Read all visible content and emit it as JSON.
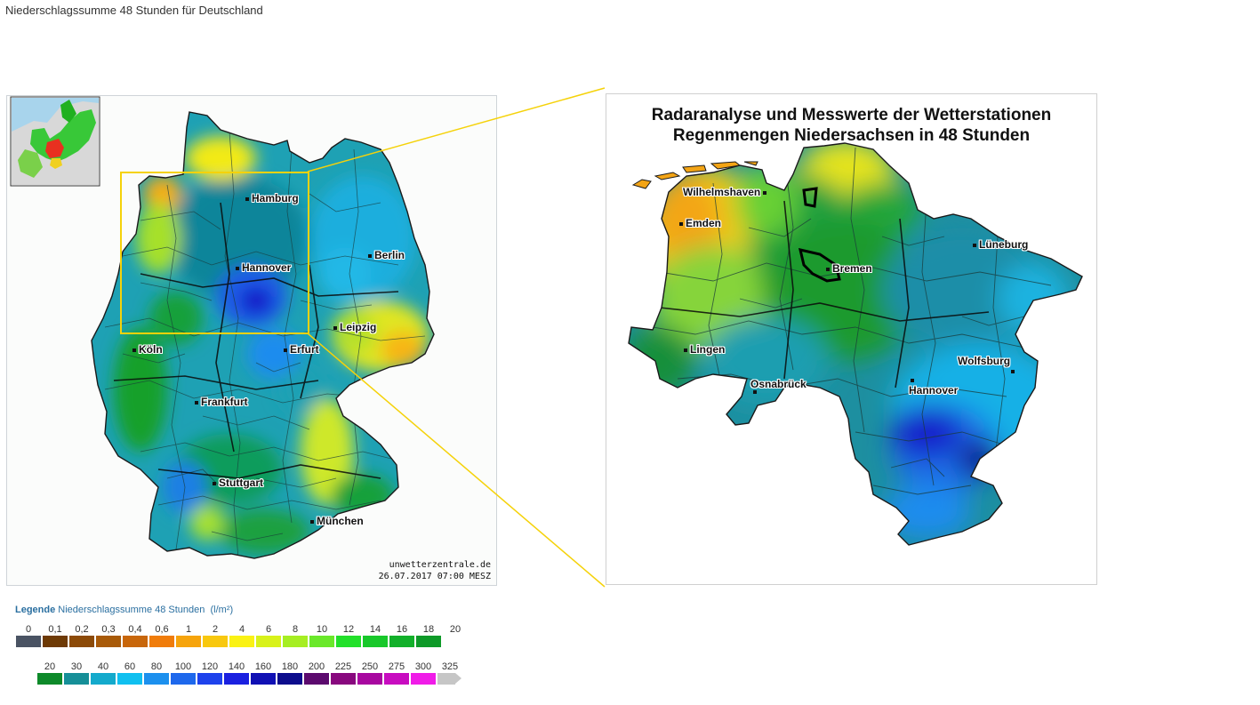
{
  "page": {
    "title": "Niederschlagssumme 48 Stunden für Deutschland"
  },
  "germany_map": {
    "cities": [
      "Hamburg",
      "Berlin",
      "Hannover",
      "Leipzig",
      "Köln",
      "Erfurt",
      "Frankfurt",
      "Stuttgart",
      "München"
    ],
    "credit_site": "unwetterzentrale.de",
    "credit_date": "26.07.2017 07:00 MESZ",
    "highlight_color": "#f5d20a"
  },
  "zoom_map": {
    "title_line1": "Radaranalyse und Messwerte der Wetterstationen",
    "title_line2": "Regenmengen Niedersachsen in 48 Stunden",
    "cities": [
      "Wilhelmshaven",
      "Emden",
      "Bremen",
      "Lüneburg",
      "Lingen",
      "Osnabrück",
      "Wolfsburg",
      "Hannover"
    ]
  },
  "legend": {
    "label": "Legende",
    "title": "Niederschlagssumme 48 Stunden",
    "unit": "(l/m²)",
    "row1": [
      {
        "value": "0",
        "color": "#4a5363"
      },
      {
        "value": "0,1",
        "color": "#6e3a05"
      },
      {
        "value": "0,2",
        "color": "#8c4a07"
      },
      {
        "value": "0,3",
        "color": "#a85a08"
      },
      {
        "value": "0,4",
        "color": "#c8660a"
      },
      {
        "value": "0,6",
        "color": "#f07c0a"
      },
      {
        "value": "1",
        "color": "#f6a40c"
      },
      {
        "value": "2",
        "color": "#f8c80e"
      },
      {
        "value": "4",
        "color": "#faf214"
      },
      {
        "value": "6",
        "color": "#d8f21a"
      },
      {
        "value": "8",
        "color": "#a6ee22"
      },
      {
        "value": "10",
        "color": "#6ae82a"
      },
      {
        "value": "12",
        "color": "#22e02a"
      },
      {
        "value": "14",
        "color": "#18c82a"
      },
      {
        "value": "16",
        "color": "#12b02a"
      },
      {
        "value": "18",
        "color": "#0e9a28"
      },
      {
        "value": "20",
        "color": ""
      }
    ],
    "row2": [
      {
        "value": "20",
        "color": "#0e8a2a"
      },
      {
        "value": "30",
        "color": "#168f98"
      },
      {
        "value": "40",
        "color": "#14aacc"
      },
      {
        "value": "60",
        "color": "#10c0f0"
      },
      {
        "value": "80",
        "color": "#1c90ee"
      },
      {
        "value": "100",
        "color": "#1e68ec"
      },
      {
        "value": "120",
        "color": "#1e42ec"
      },
      {
        "value": "140",
        "color": "#1a20e0"
      },
      {
        "value": "160",
        "color": "#1010b4"
      },
      {
        "value": "180",
        "color": "#0c0c8c"
      },
      {
        "value": "200",
        "color": "#5c0a6e"
      },
      {
        "value": "225",
        "color": "#88087e"
      },
      {
        "value": "250",
        "color": "#a808a0"
      },
      {
        "value": "275",
        "color": "#c80cc0"
      },
      {
        "value": "300",
        "color": "#f01ce8"
      },
      {
        "value": "325",
        "color": "#c6c6c6"
      }
    ]
  }
}
